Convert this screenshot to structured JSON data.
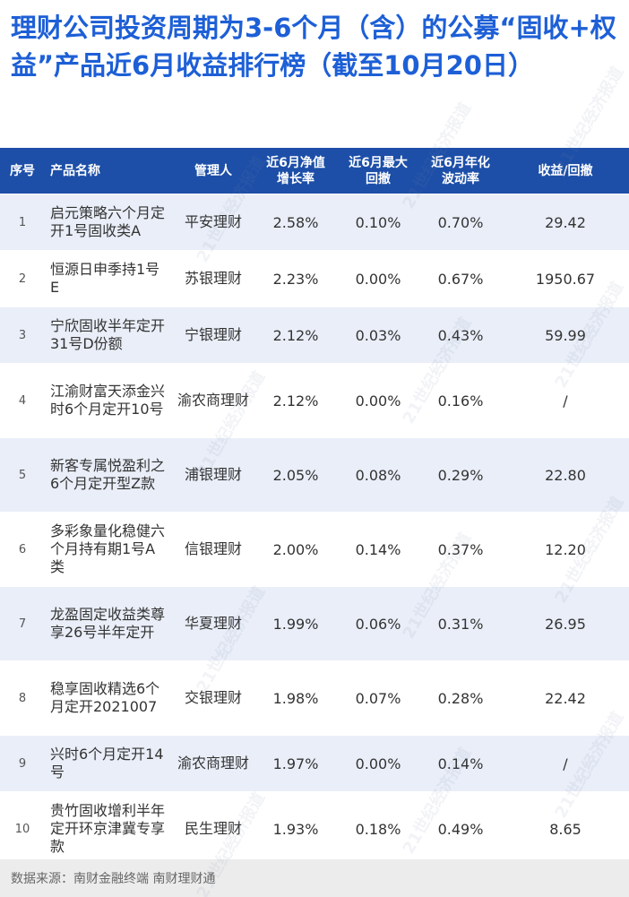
{
  "title": "理财公司投资周期为3-6个月（含）的公募“固收+权益”产品近6月收益排行榜（截至10月20日）",
  "headers": {
    "no": "序号",
    "name": "产品名称",
    "manager": "管理人",
    "ret": [
      "近6月净值",
      "增长率"
    ],
    "dd": [
      "近6月最大",
      "回撤"
    ],
    "vol": [
      "近6月年化",
      "波动率"
    ],
    "ratio": "收益/回撤"
  },
  "rows": [
    {
      "no": "1",
      "name": "启元策略六个月定开1号固收类A",
      "manager": "平安理财",
      "ret": "2.58%",
      "dd": "0.10%",
      "vol": "0.70%",
      "ratio": "29.42"
    },
    {
      "no": "2",
      "name": "恒源日申季持1号E",
      "manager": "苏银理财",
      "ret": "2.23%",
      "dd": "0.00%",
      "vol": "0.67%",
      "ratio": "1950.67"
    },
    {
      "no": "3",
      "name": "宁欣固收半年定开31号D份额",
      "manager": "宁银理财",
      "ret": "2.12%",
      "dd": "0.03%",
      "vol": "0.43%",
      "ratio": "59.99"
    },
    {
      "no": "4",
      "name": "江渝财富天添金兴时6个月定开10号",
      "manager": "渝农商理财",
      "ret": "2.12%",
      "dd": "0.00%",
      "vol": "0.16%",
      "ratio": "/"
    },
    {
      "no": "5",
      "name": "新客专属悦盈利之6个月定开型Z款",
      "manager": "浦银理财",
      "ret": "2.05%",
      "dd": "0.08%",
      "vol": "0.29%",
      "ratio": "22.80"
    },
    {
      "no": "6",
      "name": "多彩象量化稳健六个月持有期1号A类",
      "manager": "信银理财",
      "ret": "2.00%",
      "dd": "0.14%",
      "vol": "0.37%",
      "ratio": "12.20"
    },
    {
      "no": "7",
      "name": "龙盈固定收益类尊享26号半年定开",
      "manager": "华夏理财",
      "ret": "1.99%",
      "dd": "0.06%",
      "vol": "0.31%",
      "ratio": "26.95"
    },
    {
      "no": "8",
      "name": "稳享固收精选6个月定开2021007",
      "manager": "交银理财",
      "ret": "1.98%",
      "dd": "0.07%",
      "vol": "0.28%",
      "ratio": "22.42"
    },
    {
      "no": "9",
      "name": "兴时6个月定开14号",
      "manager": "渝农商理财",
      "ret": "1.97%",
      "dd": "0.00%",
      "vol": "0.14%",
      "ratio": "/"
    },
    {
      "no": "10",
      "name": "贵竹固收增利半年定开环京津冀专享款",
      "manager": "民生理财",
      "ret": "1.93%",
      "dd": "0.18%",
      "vol": "0.49%",
      "ratio": "8.65"
    }
  ],
  "footer": "数据来源：南财金融终端 南财理财通",
  "watermark": "21世纪经济报道"
}
